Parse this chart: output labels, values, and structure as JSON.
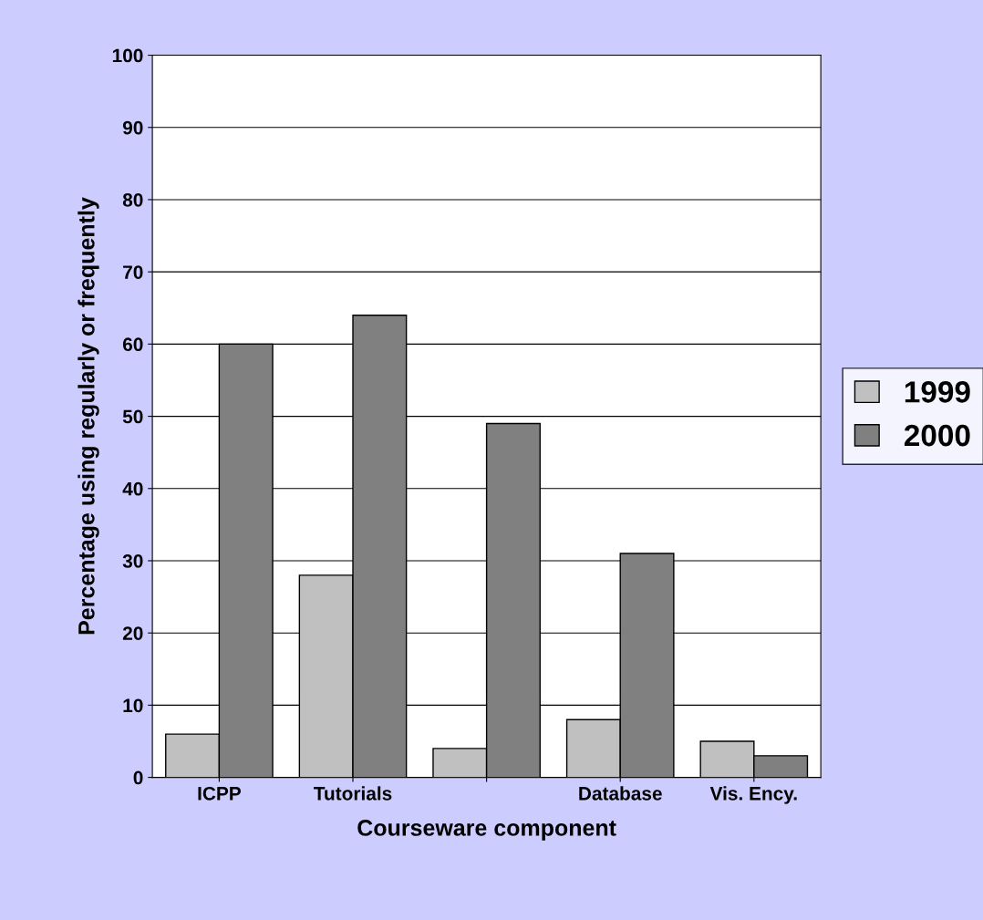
{
  "chart_data": {
    "type": "bar",
    "xlabel": "Courseware component",
    "ylabel": "Percentage using regularly or frequently",
    "categories": [
      "ICPP",
      "Tutorials",
      null,
      "Database",
      "Vis. Ency."
    ],
    "series": [
      {
        "name": "1999",
        "color": "#c0c0c0",
        "values": [
          6,
          28,
          4,
          8,
          5
        ]
      },
      {
        "name": "2000",
        "color": "#808080",
        "values": [
          60,
          64,
          49,
          31,
          3
        ]
      }
    ],
    "ylim": [
      0,
      100
    ],
    "yticks": [
      0,
      10,
      20,
      30,
      40,
      50,
      60,
      70,
      80,
      90,
      100
    ],
    "grid": "y",
    "legend": "right"
  }
}
